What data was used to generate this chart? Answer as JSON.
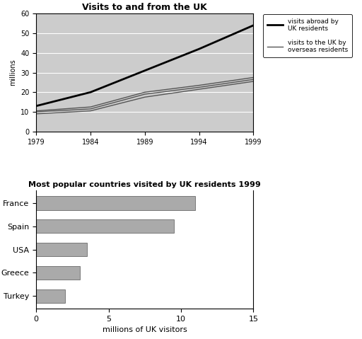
{
  "line_title": "Visits to and from the UK",
  "bar_title": "Most popular countries visited by UK residents 1999",
  "line_ylabel": "millions",
  "line_xlim": [
    1979,
    1999
  ],
  "line_ylim": [
    0,
    60
  ],
  "line_xticks": [
    1979,
    1984,
    1989,
    1994,
    1999
  ],
  "line_yticks": [
    0,
    10,
    20,
    30,
    40,
    50,
    60
  ],
  "years": [
    1979,
    1984,
    1989,
    1994,
    1999
  ],
  "visits_abroad": [
    13,
    20,
    31,
    42,
    54
  ],
  "visits_to_uk_upper": [
    10.5,
    12.5,
    20,
    23.5,
    27.5
  ],
  "visits_to_uk_mid": [
    10.0,
    11.5,
    19,
    22.5,
    26.5
  ],
  "visits_to_uk_lower": [
    9.0,
    10.5,
    17.5,
    21.5,
    25.5
  ],
  "legend_abroad": "visits abroad by\nUK residents",
  "legend_uk": "visits to the UK by\noverseas residents",
  "bar_countries": [
    "France",
    "Spain",
    "USA",
    "Greece",
    "Turkey"
  ],
  "bar_values": [
    11.0,
    9.5,
    3.5,
    3.0,
    2.0
  ],
  "bar_color": "#aaaaaa",
  "bar_xlabel": "millions of UK visitors",
  "bar_xlim": [
    0,
    15
  ],
  "bar_xticks": [
    0,
    5,
    10,
    15
  ],
  "line_bg": "#cccccc",
  "bar_bg": "#ffffff",
  "line_color_abroad": "#000000",
  "line_color_uk": "#555555",
  "title_fontsize": 9,
  "bar_title_fontsize": 8,
  "tick_fontsize": 7,
  "bar_tick_fontsize": 8,
  "legend_fontsize": 6.5
}
